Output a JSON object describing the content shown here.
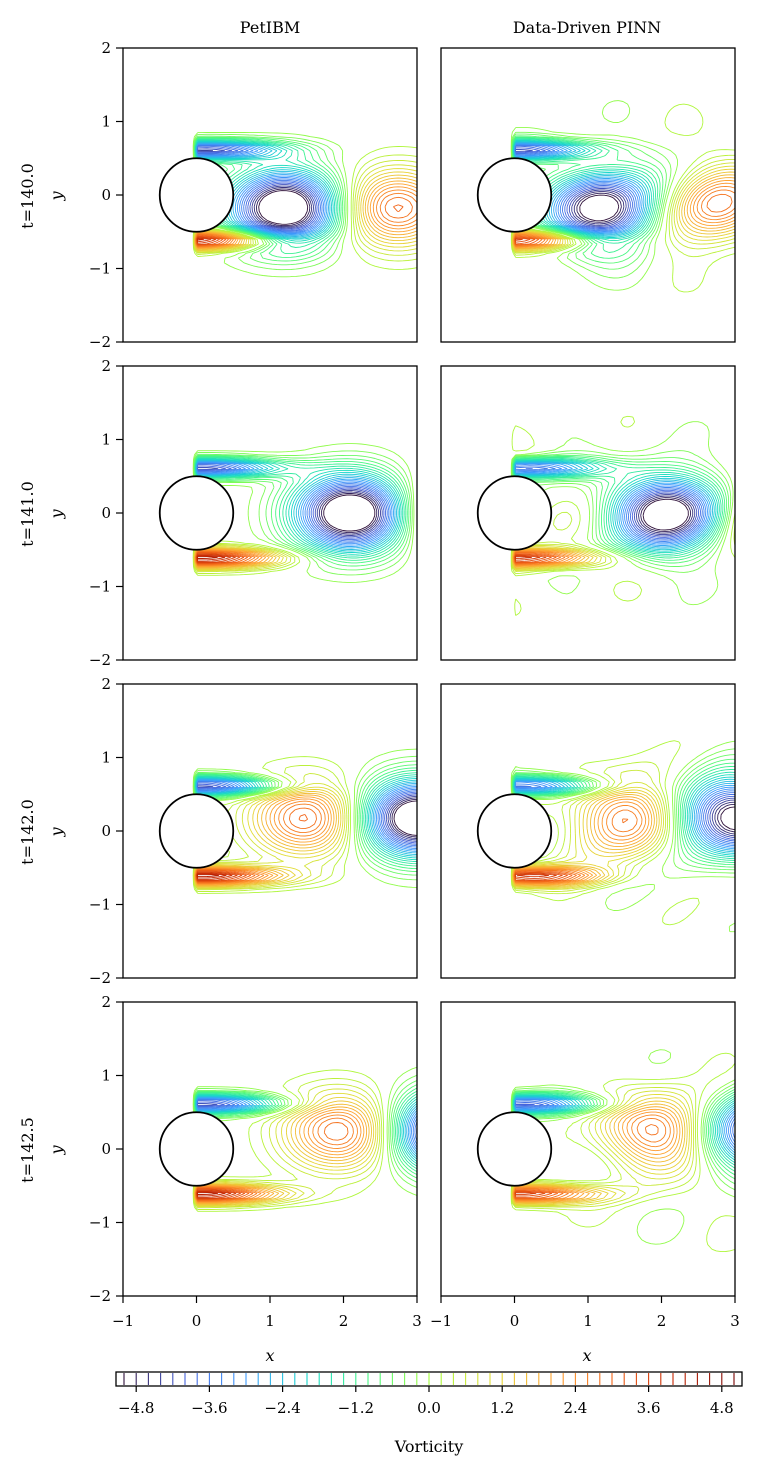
{
  "figure": {
    "col_titles": [
      "PetIBM",
      "Data-Driven PINN"
    ],
    "row_labels": [
      "t=140.0",
      "t=141.0",
      "t=142.0",
      "t=142.5"
    ],
    "ylabel": "y",
    "xlabel": "x",
    "colorbar_label": "Vorticity"
  },
  "chart_data": {
    "type": "contour",
    "panels_layout": "4 rows x 2 columns",
    "xlim": [
      -1,
      3
    ],
    "ylim": [
      -2,
      2
    ],
    "x_ticks": [
      -1,
      0,
      1,
      2,
      3
    ],
    "y_ticks": [
      -2,
      -1,
      0,
      1,
      2
    ],
    "x_tick_labels": [
      "−1",
      "0",
      "1",
      "2",
      "3"
    ],
    "y_tick_labels": [
      "−2",
      "−1",
      "0",
      "1",
      "2"
    ],
    "cylinder": {
      "center": [
        0,
        0
      ],
      "radius": 0.5
    },
    "colorbar": {
      "range": [
        -5.0,
        5.0
      ],
      "levels": 51,
      "colormap": "turbo",
      "ticks": [
        -4.8,
        -3.6,
        -2.4,
        -1.2,
        0.0,
        1.2,
        2.4,
        3.6,
        4.8
      ],
      "tick_labels": [
        "−4.8",
        "−3.6",
        "−2.4",
        "−1.2",
        "0.0",
        "1.2",
        "2.4",
        "3.6",
        "4.8"
      ],
      "label": "Vorticity"
    },
    "panels": [
      {
        "row": "t=140.0",
        "col": "PetIBM",
        "wake_phase": 0.0,
        "noise": false
      },
      {
        "row": "t=140.0",
        "col": "Data-Driven PINN",
        "wake_phase": 0.0,
        "noise": true
      },
      {
        "row": "t=141.0",
        "col": "PetIBM",
        "wake_phase": 1.0,
        "noise": false
      },
      {
        "row": "t=141.0",
        "col": "Data-Driven PINN",
        "wake_phase": 1.0,
        "noise": true
      },
      {
        "row": "t=142.0",
        "col": "PetIBM",
        "wake_phase": 2.0,
        "noise": false
      },
      {
        "row": "t=142.0",
        "col": "Data-Driven PINN",
        "wake_phase": 2.0,
        "noise": true
      },
      {
        "row": "t=142.5",
        "col": "PetIBM",
        "wake_phase": 2.5,
        "noise": false
      },
      {
        "row": "t=142.5",
        "col": "Data-Driven PINN",
        "wake_phase": 2.5,
        "noise": true
      }
    ]
  }
}
